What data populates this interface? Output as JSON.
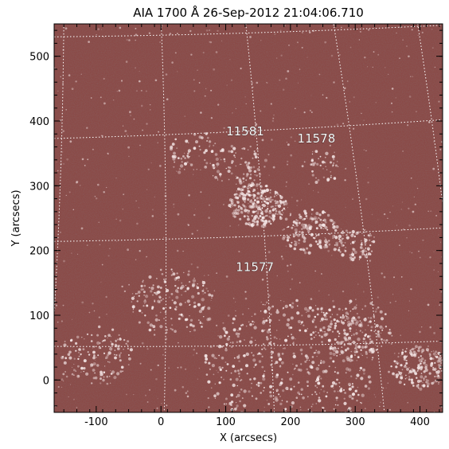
{
  "title": "AIA 1700 Å 26-Sep-2012 21:04:06.710",
  "xlabel": "X (arcsecs)",
  "ylabel": "Y (arcsecs)",
  "x_ticks": [
    {
      "label": "-100",
      "value": -100
    },
    {
      "label": "0",
      "value": 0
    },
    {
      "label": "100",
      "value": 100
    },
    {
      "label": "200",
      "value": 200
    },
    {
      "label": "300",
      "value": 300
    },
    {
      "label": "400",
      "value": 400
    }
  ],
  "y_ticks": [
    {
      "label": "0",
      "value": 0
    },
    {
      "label": "100",
      "value": 100
    },
    {
      "label": "200",
      "value": 200
    },
    {
      "label": "300",
      "value": 300
    },
    {
      "label": "400",
      "value": 400
    },
    {
      "label": "500",
      "value": 500
    }
  ],
  "xlim": [
    -165,
    435
  ],
  "ylim": [
    -50,
    550
  ],
  "colors": {
    "background": "#8a4a47",
    "bright": "#f4e6e6",
    "grid": "#ffffff"
  },
  "active_regions": [
    {
      "label": "11581",
      "x": 130,
      "y": 378
    },
    {
      "label": "11578",
      "x": 240,
      "y": 367
    },
    {
      "label": "11577",
      "x": 145,
      "y": 168
    }
  ]
}
